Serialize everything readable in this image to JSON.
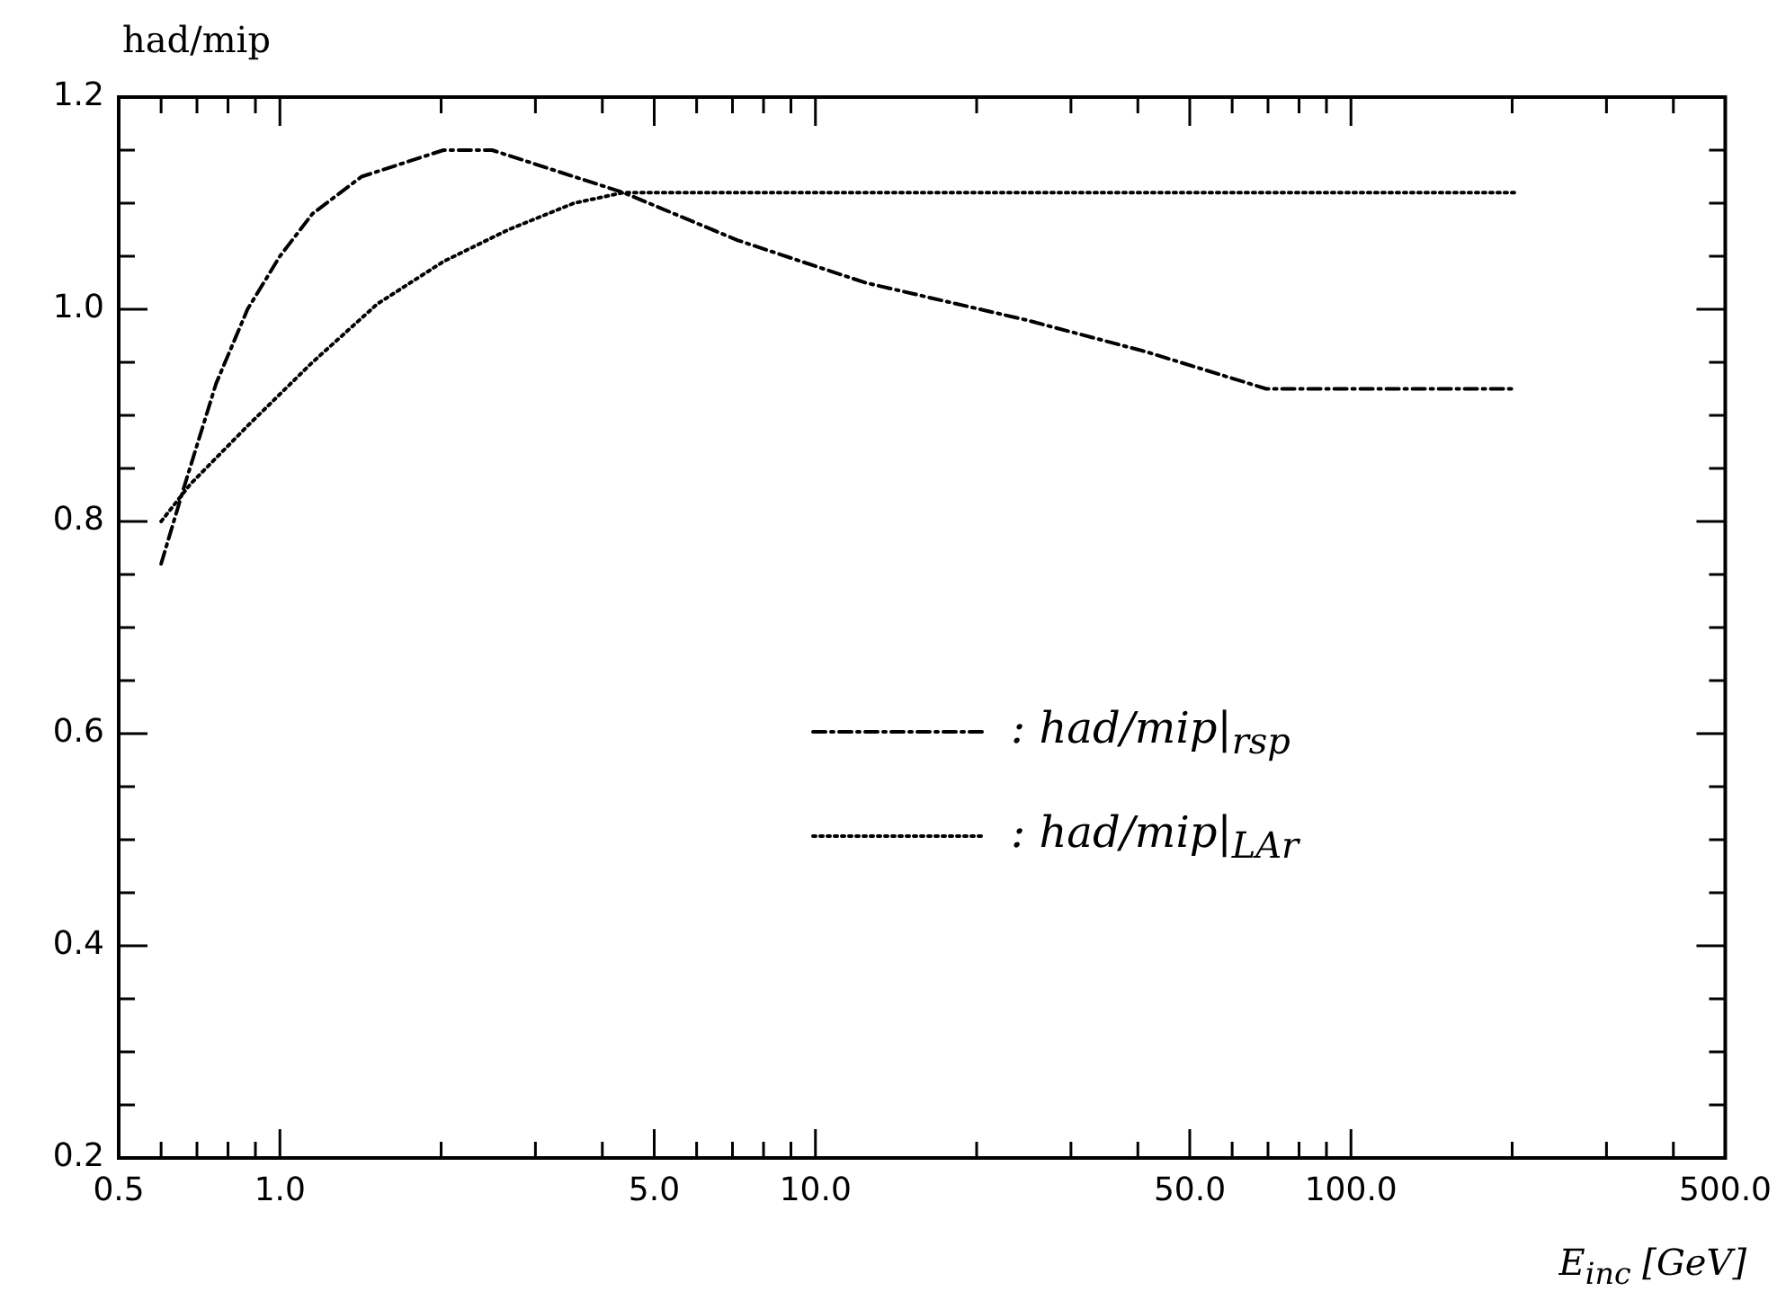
{
  "chart_data": {
    "type": "line",
    "ylabel": "had/mip",
    "xlabel": "E$_{inc}$ [GeV]",
    "log": "x",
    "legend": "bottom right",
    "marker": "none",
    "xlim": [
      0.5,
      500
    ],
    "xticks": [
      {
        "value": 0.5,
        "label": "0.5"
      },
      {
        "value": 0.6,
        "label": null
      },
      {
        "value": 0.7,
        "label": null
      },
      {
        "value": 0.8,
        "label": null
      },
      {
        "value": 0.9,
        "label": null
      },
      {
        "value": 1,
        "label": "1.0"
      },
      {
        "value": 2,
        "label": null
      },
      {
        "value": 3,
        "label": null
      },
      {
        "value": 4,
        "label": null
      },
      {
        "value": 5,
        "label": "5.0"
      },
      {
        "value": 6,
        "label": null
      },
      {
        "value": 7,
        "label": null
      },
      {
        "value": 8,
        "label": null
      },
      {
        "value": 9,
        "label": null
      },
      {
        "value": 10,
        "label": "10.0"
      },
      {
        "value": 20,
        "label": null
      },
      {
        "value": 30,
        "label": null
      },
      {
        "value": 40,
        "label": null
      },
      {
        "value": 50,
        "label": "50.0"
      },
      {
        "value": 60,
        "label": null
      },
      {
        "value": 70,
        "label": null
      },
      {
        "value": 80,
        "label": null
      },
      {
        "value": 90,
        "label": null
      },
      {
        "value": 100,
        "label": "100.0"
      },
      {
        "value": 200,
        "label": null
      },
      {
        "value": 300,
        "label": null
      },
      {
        "value": 400,
        "label": null
      },
      {
        "value": 500,
        "label": "500.0"
      }
    ],
    "ylim": [
      0.2,
      1.2
    ],
    "yticks": [
      {
        "value": 0.2,
        "label": "0.2"
      },
      {
        "value": 0.25,
        "label": null
      },
      {
        "value": 0.3,
        "label": null
      },
      {
        "value": 0.35,
        "label": null
      },
      {
        "value": 0.4,
        "label": "0.4"
      },
      {
        "value": 0.45,
        "label": null
      },
      {
        "value": 0.5,
        "label": null
      },
      {
        "value": 0.55,
        "label": null
      },
      {
        "value": 0.6,
        "label": "0.6"
      },
      {
        "value": 0.65,
        "label": null
      },
      {
        "value": 0.7,
        "label": null
      },
      {
        "value": 0.75,
        "label": null
      },
      {
        "value": 0.8,
        "label": "0.8"
      },
      {
        "value": 0.85,
        "label": null
      },
      {
        "value": 0.9,
        "label": null
      },
      {
        "value": 0.95,
        "label": null
      },
      {
        "value": 1.0,
        "label": "1.0"
      },
      {
        "value": 1.05,
        "label": null
      },
      {
        "value": 1.1,
        "label": null
      },
      {
        "value": 1.15,
        "label": null
      },
      {
        "value": 1.2,
        "label": "1.2"
      }
    ],
    "series": [
      {
        "name": ": had/mip|$_{rsp}$",
        "color": "#000000",
        "line_style": "dashed",
        "x": [
          0.6,
          0.66,
          0.76,
          0.87,
          1.0,
          1.15,
          1.42,
          2.02,
          2.49,
          3.3,
          4.38,
          7.16,
          12.4,
          24.7,
          41.4,
          69.5,
          85.3,
          203
        ],
        "values": [
          0.76,
          0.83,
          0.93,
          1.0,
          1.05,
          1.09,
          1.125,
          1.15,
          1.15,
          1.13,
          1.11,
          1.065,
          1.025,
          0.99,
          0.96,
          0.925,
          0.925,
          0.925
        ]
      },
      {
        "name": ": had/mip|$_{LAr}$",
        "color": "#000000",
        "line_style": "dotted",
        "x": [
          0.6,
          0.68,
          0.87,
          1.15,
          1.52,
          2.02,
          2.67,
          3.54,
          4.38,
          6.0,
          10,
          203
        ],
        "values": [
          0.8,
          0.835,
          0.89,
          0.95,
          1.005,
          1.045,
          1.075,
          1.1,
          1.11,
          1.11,
          1.11,
          1.11
        ]
      }
    ]
  }
}
